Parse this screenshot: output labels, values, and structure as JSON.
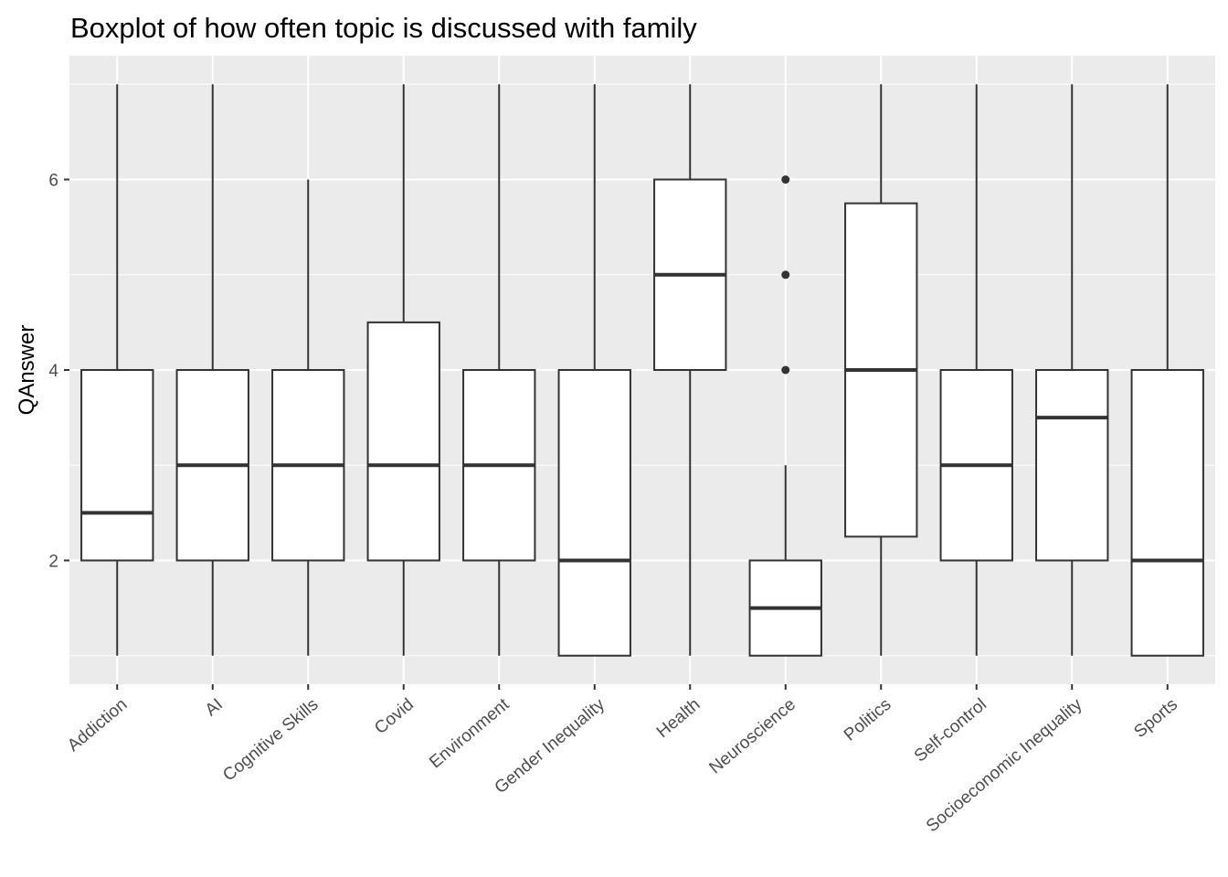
{
  "chart_data": {
    "type": "boxplot",
    "title": "Boxplot of how often topic is discussed with family",
    "xlabel": "",
    "ylabel": "QAnswer",
    "ylim": [
      0.7,
      7.3
    ],
    "y_ticks": [
      2,
      4,
      6
    ],
    "grid": true,
    "categories": [
      "Addiction",
      "AI",
      "Cognitive Skills",
      "Covid",
      "Environment",
      "Gender Inequality",
      "Health",
      "Neuroscience",
      "Politics",
      "Self-control",
      "Socioeconomic Inequality",
      "Sports"
    ],
    "boxes": [
      {
        "category": "Addiction",
        "min": 1,
        "q1": 2,
        "median": 2.5,
        "q3": 4,
        "max": 7,
        "outliers": []
      },
      {
        "category": "AI",
        "min": 1,
        "q1": 2,
        "median": 3,
        "q3": 4,
        "max": 7,
        "outliers": []
      },
      {
        "category": "Cognitive Skills",
        "min": 1,
        "q1": 2,
        "median": 3,
        "q3": 4,
        "max": 6,
        "outliers": []
      },
      {
        "category": "Covid",
        "min": 1,
        "q1": 2,
        "median": 3,
        "q3": 4.5,
        "max": 7,
        "outliers": []
      },
      {
        "category": "Environment",
        "min": 1,
        "q1": 2,
        "median": 3,
        "q3": 4,
        "max": 7,
        "outliers": []
      },
      {
        "category": "Gender Inequality",
        "min": 1,
        "q1": 1,
        "median": 2,
        "q3": 4,
        "max": 7,
        "outliers": []
      },
      {
        "category": "Health",
        "min": 1,
        "q1": 4,
        "median": 5,
        "q3": 6,
        "max": 7,
        "outliers": []
      },
      {
        "category": "Neuroscience",
        "min": 1,
        "q1": 1,
        "median": 1.5,
        "q3": 2,
        "max": 3,
        "outliers": [
          4,
          5,
          6
        ]
      },
      {
        "category": "Politics",
        "min": 1,
        "q1": 2.25,
        "median": 4,
        "q3": 5.75,
        "max": 7,
        "outliers": []
      },
      {
        "category": "Self-control",
        "min": 1,
        "q1": 2,
        "median": 3,
        "q3": 4,
        "max": 7,
        "outliers": []
      },
      {
        "category": "Socioeconomic Inequality",
        "min": 1,
        "q1": 2,
        "median": 3.5,
        "q3": 4,
        "max": 7,
        "outliers": []
      },
      {
        "category": "Sports",
        "min": 1,
        "q1": 1,
        "median": 2,
        "q3": 4,
        "max": 7,
        "outliers": []
      }
    ],
    "colors": {
      "panel_background": "#ebebeb",
      "grid": "#ffffff",
      "box_fill": "#ffffff",
      "box_line": "#333333",
      "tick_text": "#4d4d4d"
    }
  }
}
